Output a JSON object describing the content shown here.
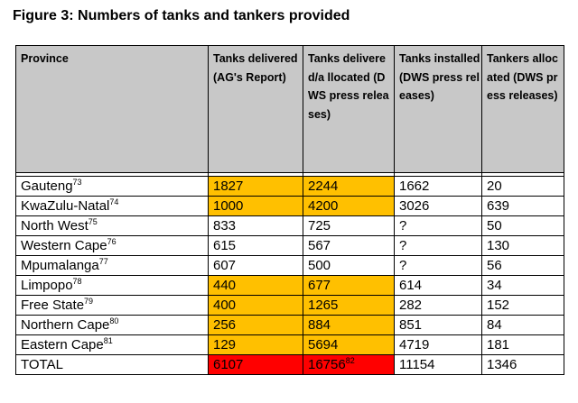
{
  "figure": {
    "title": "Figure 3: Numbers of tanks and tankers provided"
  },
  "table": {
    "headers": [
      "Province",
      "Tanks delivered (AG's Report)",
      "Tanks delivered/a llocated (DWS press releases)",
      "Tanks installed (DWS press releases)",
      "Tankers allocated (DWS press releases)"
    ],
    "highlight_colors": {
      "orange": "#ffc000",
      "red": "#ff0000",
      "header": "#c8c8c8"
    },
    "rows": [
      {
        "province": "Gauteng",
        "ref": "73",
        "ag": "1827",
        "dws": "2244",
        "dws_ref": "",
        "installed": "1662",
        "tankers": "20",
        "ag_hl": "orange",
        "dws_hl": "orange"
      },
      {
        "province": "KwaZulu-Natal",
        "ref": "74",
        "ag": "1000",
        "dws": "4200",
        "dws_ref": "",
        "installed": "3026",
        "tankers": "639",
        "ag_hl": "orange",
        "dws_hl": "orange"
      },
      {
        "province": "North West",
        "ref": "75",
        "ag": "833",
        "dws": "725",
        "dws_ref": "",
        "installed": "?",
        "tankers": "50",
        "ag_hl": "",
        "dws_hl": ""
      },
      {
        "province": "Western Cape",
        "ref": "76",
        "ag": "615",
        "dws": "567",
        "dws_ref": "",
        "installed": "?",
        "tankers": "130",
        "ag_hl": "",
        "dws_hl": ""
      },
      {
        "province": "Mpumalanga",
        "ref": "77",
        "ag": "607",
        "dws": "500",
        "dws_ref": "",
        "installed": "?",
        "tankers": "56",
        "ag_hl": "",
        "dws_hl": ""
      },
      {
        "province": "Limpopo",
        "ref": "78",
        "ag": "440",
        "dws": "677",
        "dws_ref": "",
        "installed": "614",
        "tankers": "34",
        "ag_hl": "orange",
        "dws_hl": "orange"
      },
      {
        "province": "Free State",
        "ref": "79",
        "ag": "400",
        "dws": "1265",
        "dws_ref": "",
        "installed": "282",
        "tankers": "152",
        "ag_hl": "orange",
        "dws_hl": "orange"
      },
      {
        "province": "Northern Cape",
        "ref": "80",
        "ag": "256",
        "dws": "884",
        "dws_ref": "",
        "installed": "851",
        "tankers": "84",
        "ag_hl": "orange",
        "dws_hl": "orange"
      },
      {
        "province": "Eastern Cape",
        "ref": "81",
        "ag": "129",
        "dws": "5694",
        "dws_ref": "",
        "installed": "4719",
        "tankers": "181",
        "ag_hl": "orange",
        "dws_hl": "orange"
      },
      {
        "province": "TOTAL",
        "ref": "",
        "ag": "6107",
        "dws": "16756",
        "dws_ref": "82",
        "installed": "11154",
        "tankers": "1346",
        "ag_hl": "red",
        "dws_hl": "red"
      }
    ]
  }
}
